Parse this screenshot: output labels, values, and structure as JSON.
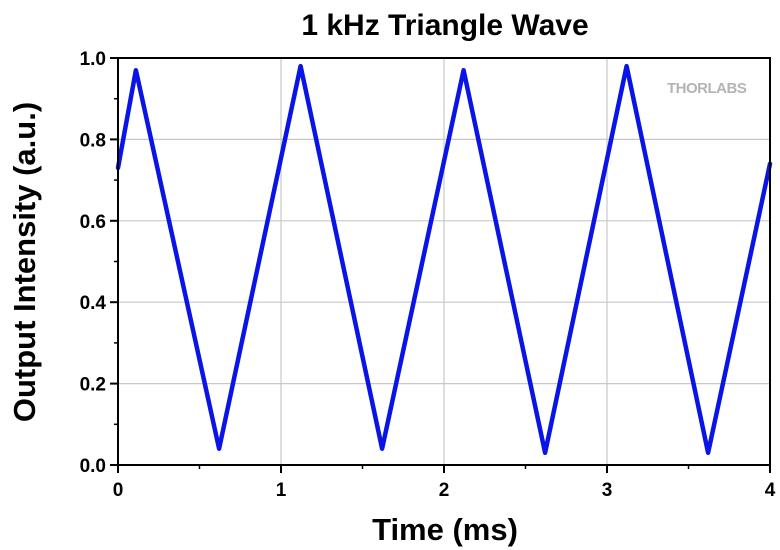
{
  "chart_data": {
    "type": "line",
    "title": "1 kHz Triangle Wave",
    "xlabel": "Time (ms)",
    "ylabel": "Output Intensity (a.u.)",
    "xlim": [
      0,
      4
    ],
    "ylim": [
      0,
      1.0
    ],
    "x_ticks": [
      "0",
      "1",
      "2",
      "3",
      "4"
    ],
    "y_ticks": [
      "0.0",
      "0.2",
      "0.4",
      "0.6",
      "0.8",
      "1.0"
    ],
    "grid": true,
    "legend": "none",
    "series": [
      {
        "color": "#0a14e6",
        "x": [
          0.0,
          0.11,
          0.62,
          1.12,
          1.62,
          2.12,
          2.62,
          3.12,
          3.62,
          4.0
        ],
        "y": [
          0.73,
          0.97,
          0.04,
          0.98,
          0.04,
          0.97,
          0.03,
          0.98,
          0.03,
          0.74
        ]
      }
    ]
  },
  "logo": {
    "text": "THORLABS"
  }
}
